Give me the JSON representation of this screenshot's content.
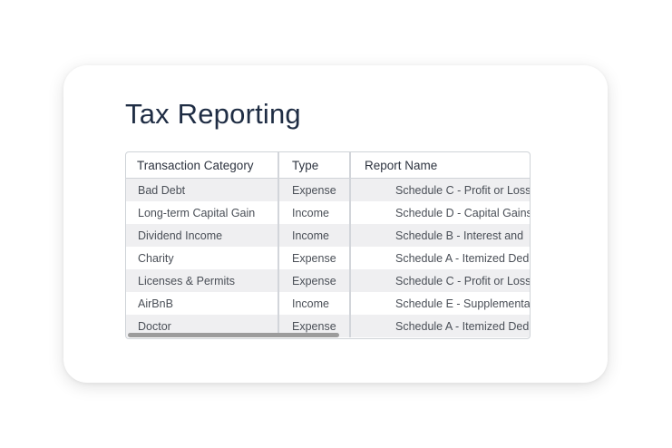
{
  "page": {
    "title": "Tax Reporting"
  },
  "table": {
    "headers": {
      "category": "Transaction Category",
      "type": "Type",
      "report": "Report Name"
    },
    "rows": [
      {
        "category": "Bad Debt",
        "type": "Expense",
        "report": "Schedule C - Profit or Loss"
      },
      {
        "category": "Long-term Capital Gain",
        "type": "Income",
        "report": "Schedule D - Capital Gains"
      },
      {
        "category": "Dividend Income",
        "type": "Income",
        "report": "Schedule B - Interest and"
      },
      {
        "category": "Charity",
        "type": "Expense",
        "report": "Schedule A - Itemized Deductions"
      },
      {
        "category": "Licenses & Permits",
        "type": "Expense",
        "report": "Schedule C - Profit or Loss"
      },
      {
        "category": "AirBnB",
        "type": "Income",
        "report": "Schedule E - Supplemental"
      },
      {
        "category": "Doctor",
        "type": "Expense",
        "report": "Schedule A - Itemized Deductions"
      }
    ]
  },
  "colors": {
    "title": "#1f2d44",
    "stripe": "#efeff1",
    "border": "#cfd3d8",
    "scrollbar": "#9c9c9c"
  }
}
